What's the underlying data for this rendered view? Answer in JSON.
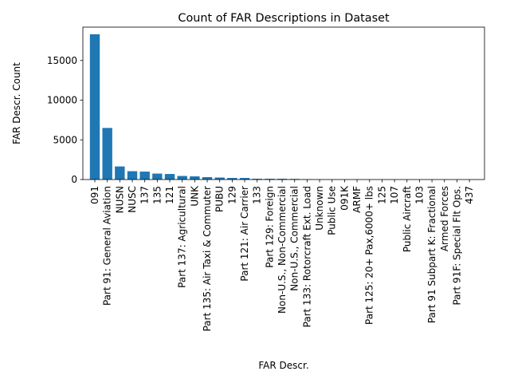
{
  "chart_data": {
    "type": "bar",
    "title": "Count of FAR Descriptions in Dataset",
    "xlabel": "FAR Descr.",
    "ylabel": "FAR Descr. Count",
    "ylim": [
      0,
      19200
    ],
    "yticks": [
      0,
      5000,
      10000,
      15000
    ],
    "ytick_labels": [
      "0",
      "5000",
      "10000",
      "15000"
    ],
    "grid": false,
    "legend": "none",
    "bar_color": "#1f77b4",
    "categories": [
      "091",
      "Part 91: General Aviation",
      "NUSN",
      "NUSC",
      "137",
      "135",
      "121",
      "Part 137: Agricultural",
      "UNK",
      "Part 135: Air Taxi & Commuter",
      "PUBU",
      "129",
      "Part 121: Air Carrier",
      "133",
      "Part 129: Foreign",
      "Non-U.S., Non-Commercial",
      "Non-U.S., Commercial",
      "Part 133: Rotorcraft Ext. Load",
      "Unknown",
      "Public Use",
      "091K",
      "ARMF",
      "Part 125: 20+ Pax,6000+ lbs",
      "125",
      "107",
      "Public Aircraft",
      "103",
      "Part 91 Subpart K: Fractional",
      "Armed Forces",
      "Part 91F: Special Flt Ops.",
      "437"
    ],
    "values": [
      18300,
      6500,
      1650,
      1050,
      1000,
      750,
      700,
      450,
      400,
      300,
      250,
      200,
      200,
      100,
      100,
      100,
      80,
      50,
      20,
      15,
      12,
      10,
      8,
      6,
      5,
      4,
      3,
      3,
      2,
      2,
      1
    ]
  }
}
